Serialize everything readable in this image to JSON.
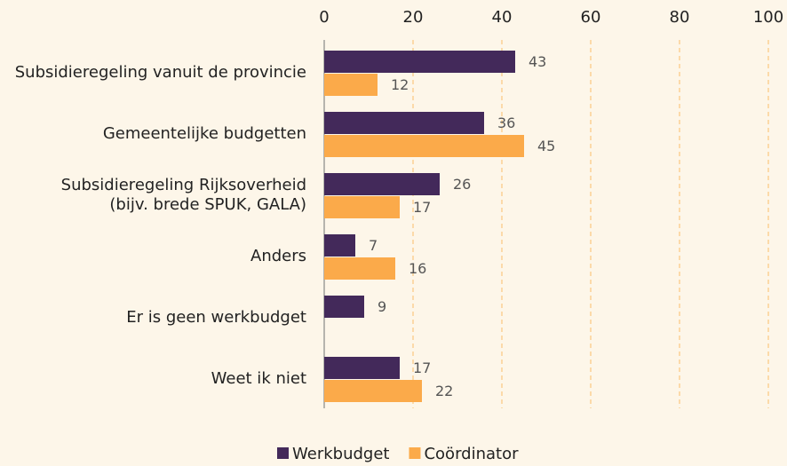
{
  "chart_data": {
    "type": "bar",
    "orientation": "horizontal",
    "categories": [
      "Subsidieregeling vanuit de provincie",
      "Gemeentelijke budgetten",
      "Subsidieregeling Rijksoverheid\n(bijv. brede SPUK, GALA)",
      "Anders",
      "Er is geen werkbudget",
      "Weet ik niet"
    ],
    "series": [
      {
        "name": "Werkbudget",
        "color": "#43295a",
        "values": [
          43,
          36,
          26,
          7,
          9,
          17
        ]
      },
      {
        "name": "Coördinator",
        "color": "#fbaa4a",
        "values": [
          12,
          45,
          17,
          16,
          null,
          22
        ]
      }
    ],
    "xlim": [
      0,
      100
    ],
    "xticks": [
      0,
      20,
      40,
      60,
      80,
      100
    ],
    "grid": true,
    "legend": "bottom"
  }
}
